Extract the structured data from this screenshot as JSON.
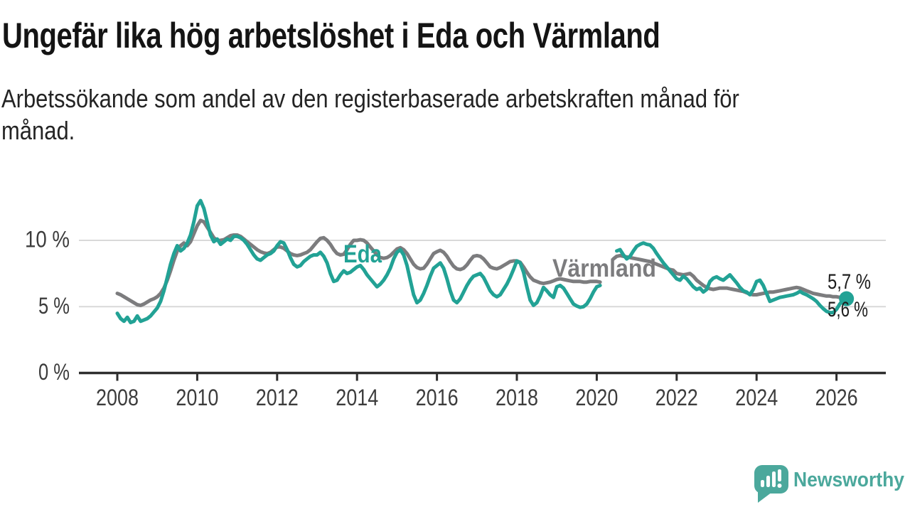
{
  "header": {
    "title": "Ungefär lika hög arbetslöshet i Eda och Värmland",
    "subtitle_lines": [
      "Arbetssökande som andel av den registerbaserade arbetskraften månad för",
      "månad."
    ]
  },
  "branding": {
    "name": "Newsworthy",
    "icon": "newsworthy-speech-bubble-bar-chart-icon"
  },
  "colors": {
    "eda_line": "#22A295",
    "varmland_line": "#7C7C7E",
    "gridline": "#D9D9D9",
    "axis": "#2E2E2E",
    "tick_label": "#3C3C3C",
    "value_label": "#1D1D1D",
    "logo_teal": "#4BA89C",
    "background": "#FFFFFF"
  },
  "chart_data": {
    "type": "line",
    "title": "Ungefär lika hög arbetslöshet i Eda och Värmland",
    "subtitle": "Arbetssökande som andel av den registerbaserade arbetskraften månad för månad.",
    "unit": "percent of registered labour force",
    "frequency": "monthly",
    "x_start": {
      "year": 2008,
      "month": 1
    },
    "x_end": {
      "year": 2026,
      "month": 4
    },
    "x_ticks": [
      "2008",
      "2010",
      "2012",
      "2014",
      "2016",
      "2018",
      "2020",
      "2022",
      "2024",
      "2026"
    ],
    "y_ticks": [
      {
        "label": "0 %",
        "value": 0
      },
      {
        "label": "5 %",
        "value": 5
      },
      {
        "label": "10 %",
        "value": 10
      }
    ],
    "ylim": [
      0,
      14
    ],
    "grid": "horizontal",
    "legend": "inline-series-labels",
    "data_gap_note": "both series break during spring 2020",
    "series": [
      {
        "name": "Värmland",
        "label_text": "Värmland",
        "end_label": "5,7 %",
        "latest_value": 5.7,
        "color": "#7C7C7E",
        "values": [
          6.0,
          5.9,
          5.75,
          5.6,
          5.45,
          5.3,
          5.15,
          5.1,
          5.2,
          5.35,
          5.5,
          5.6,
          5.75,
          6.0,
          6.4,
          7.0,
          7.7,
          8.5,
          9.2,
          9.6,
          9.8,
          9.6,
          9.9,
          10.5,
          11.1,
          11.5,
          11.4,
          11.0,
          10.6,
          10.2,
          10.0,
          10.0,
          10.05,
          10.2,
          10.35,
          10.4,
          10.4,
          10.3,
          10.1,
          9.9,
          9.7,
          9.5,
          9.3,
          9.15,
          9.05,
          9.0,
          9.1,
          9.3,
          9.5,
          9.5,
          9.4,
          9.2,
          9.0,
          8.9,
          8.85,
          8.9,
          9.0,
          9.1,
          9.3,
          9.6,
          9.9,
          10.15,
          10.2,
          10.0,
          9.7,
          9.3,
          9.0,
          8.9,
          8.95,
          9.3,
          9.7,
          10.0,
          10.0,
          10.05,
          10.0,
          9.8,
          9.5,
          9.2,
          8.9,
          8.7,
          8.65,
          8.7,
          8.85,
          9.1,
          9.35,
          9.45,
          9.3,
          9.0,
          8.6,
          8.2,
          7.95,
          7.85,
          7.9,
          8.2,
          8.6,
          9.0,
          9.15,
          9.25,
          9.1,
          8.8,
          8.4,
          8.05,
          7.85,
          7.8,
          7.9,
          8.15,
          8.5,
          8.8,
          8.85,
          8.8,
          8.6,
          8.3,
          8.0,
          7.9,
          7.85,
          7.95,
          8.1,
          8.25,
          8.4,
          8.45,
          8.45,
          8.35,
          8.0,
          7.6,
          7.25,
          7.0,
          6.9,
          6.8,
          6.75,
          6.8,
          6.85,
          6.95,
          7.05,
          7.1,
          7.05,
          7.0,
          6.95,
          6.9,
          6.9,
          6.9,
          6.85,
          6.85,
          6.9,
          6.9,
          6.9,
          6.85,
          null,
          null,
          null,
          8.6,
          8.8,
          8.85,
          8.8,
          8.75,
          8.7,
          8.65,
          8.6,
          8.55,
          8.5,
          8.45,
          8.4,
          8.3,
          8.2,
          8.1,
          8.0,
          7.9,
          7.8,
          7.75,
          7.5,
          7.45,
          7.4,
          7.45,
          7.5,
          7.3,
          7.0,
          6.8,
          6.6,
          6.45,
          6.35,
          6.3,
          6.35,
          6.4,
          6.4,
          6.4,
          6.35,
          6.3,
          6.25,
          6.2,
          6.15,
          6.05,
          5.95,
          5.9,
          5.9,
          5.95,
          6.0,
          6.05,
          6.1,
          6.1,
          6.15,
          6.2,
          6.25,
          6.3,
          6.35,
          6.4,
          6.45,
          6.4,
          6.3,
          6.2,
          6.1,
          6.0,
          5.95,
          5.9,
          5.85,
          5.8,
          5.8,
          5.75,
          5.75,
          5.7,
          5.65,
          5.7
        ]
      },
      {
        "name": "Eda",
        "label_text": "Eda",
        "end_label": "5,6 %",
        "latest_value": 5.6,
        "color": "#22A295",
        "values": [
          4.5,
          4.1,
          3.9,
          4.2,
          3.8,
          3.9,
          4.3,
          3.9,
          4.0,
          4.1,
          4.3,
          4.6,
          4.9,
          5.4,
          6.2,
          7.2,
          8.2,
          9.0,
          9.6,
          9.2,
          9.4,
          9.8,
          10.4,
          11.4,
          12.6,
          13.0,
          12.4,
          11.4,
          10.4,
          9.9,
          10.1,
          9.7,
          9.9,
          10.1,
          10.0,
          10.3,
          10.3,
          10.2,
          10.0,
          9.7,
          9.3,
          8.9,
          8.6,
          8.5,
          8.7,
          8.9,
          9.0,
          9.2,
          9.6,
          9.9,
          9.8,
          9.3,
          8.7,
          8.2,
          8.0,
          8.1,
          8.4,
          8.6,
          8.8,
          8.9,
          8.9,
          9.1,
          8.8,
          8.3,
          7.5,
          6.9,
          7.0,
          7.4,
          7.7,
          7.5,
          7.6,
          7.8,
          8.0,
          8.1,
          7.8,
          7.4,
          7.1,
          6.8,
          6.5,
          6.7,
          7.0,
          7.4,
          7.9,
          8.6,
          9.1,
          9.3,
          8.9,
          8.1,
          7.0,
          5.9,
          5.3,
          5.5,
          6.0,
          6.6,
          7.3,
          7.9,
          8.1,
          8.3,
          7.9,
          7.1,
          6.2,
          5.5,
          5.3,
          5.6,
          6.1,
          6.6,
          7.0,
          7.3,
          7.4,
          7.5,
          7.2,
          6.7,
          6.2,
          5.9,
          5.75,
          5.9,
          6.3,
          6.7,
          7.2,
          7.8,
          8.45,
          8.3,
          7.6,
          6.5,
          5.5,
          5.1,
          5.3,
          5.8,
          6.45,
          6.2,
          5.9,
          5.7,
          6.5,
          6.6,
          6.4,
          6.0,
          5.6,
          5.2,
          5.05,
          4.95,
          5.0,
          5.2,
          5.6,
          6.1,
          6.5,
          6.6,
          null,
          null,
          null,
          null,
          9.2,
          9.3,
          8.9,
          8.6,
          8.8,
          9.2,
          9.55,
          9.7,
          9.8,
          9.7,
          9.65,
          9.4,
          9.0,
          8.65,
          8.3,
          8.0,
          7.7,
          7.4,
          7.1,
          7.0,
          7.3,
          7.1,
          6.8,
          6.5,
          6.3,
          6.4,
          6.1,
          6.3,
          6.9,
          7.15,
          7.25,
          7.1,
          7.0,
          7.2,
          7.4,
          7.1,
          6.8,
          6.45,
          6.2,
          6.1,
          5.9,
          6.3,
          6.9,
          7.0,
          6.6,
          6.0,
          5.4,
          5.5,
          5.6,
          5.7,
          5.75,
          5.8,
          5.85,
          5.9,
          6.0,
          6.15,
          6.0,
          5.9,
          5.75,
          5.6,
          5.4,
          5.1,
          4.85,
          4.65,
          4.55,
          4.55,
          4.8,
          5.2,
          5.5,
          5.6
        ]
      }
    ]
  }
}
